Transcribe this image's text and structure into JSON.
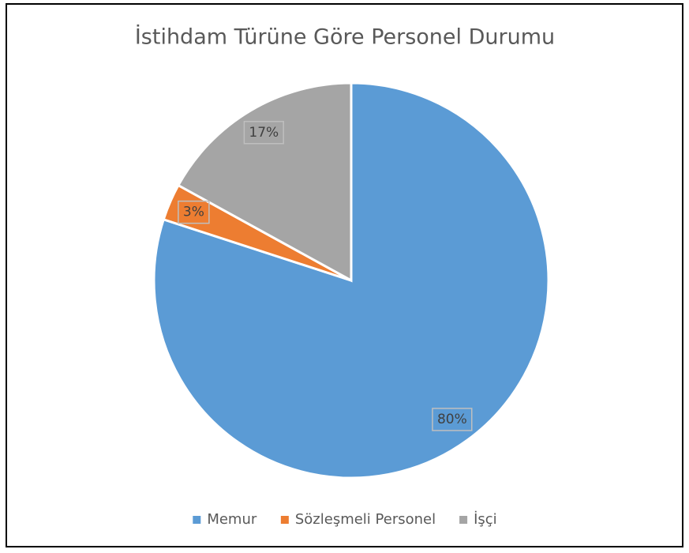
{
  "chart_data": {
    "type": "pie",
    "title": "İstihdam Türüne Göre Personel Durumu",
    "categories": [
      "Memur",
      "Sözleşmeli Personel",
      "İşçi"
    ],
    "values": [
      80,
      3,
      17
    ],
    "value_labels": [
      "80%",
      "3%",
      "17%"
    ],
    "colors": [
      "#5b9bd5",
      "#ed7d31",
      "#a5a5a5"
    ],
    "legend": "bottom"
  }
}
